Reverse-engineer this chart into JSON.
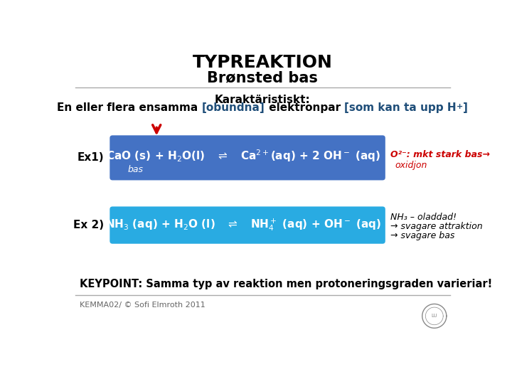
{
  "title_line1": "TYPREAKTION",
  "title_line2": "Brønsted bas",
  "bg_color": "#ffffff",
  "title_color": "#000000",
  "separator_color": "#aaaaaa",
  "karaktar_label": "Karaktäristiskt:",
  "ex1_label": "Ex1)",
  "ex2_label": "Ex 2)",
  "ex1_box_color": "#4472C4",
  "ex2_box_color": "#29ABE2",
  "ex1_note_line1": "O²⁻: mkt stark bas→",
  "ex1_note_line2": "oxidjon",
  "ex2_note_line1": "NH₃ – oladdad!",
  "ex2_note_line2": "→ svagare attraktion",
  "ex2_note_line3": "→ svagare bas",
  "keypoint": "KEYPOINT: Samma typ av reaktion men protoneringsgraden varieriar!",
  "footer": "KEMMA02/ © Sofi Elmroth 2011",
  "red_arrow_color": "#CC0000",
  "note_color": "#CC0000",
  "white_text": "#FFFFFF",
  "black_text": "#000000",
  "dark_blue": "#1F4E79"
}
